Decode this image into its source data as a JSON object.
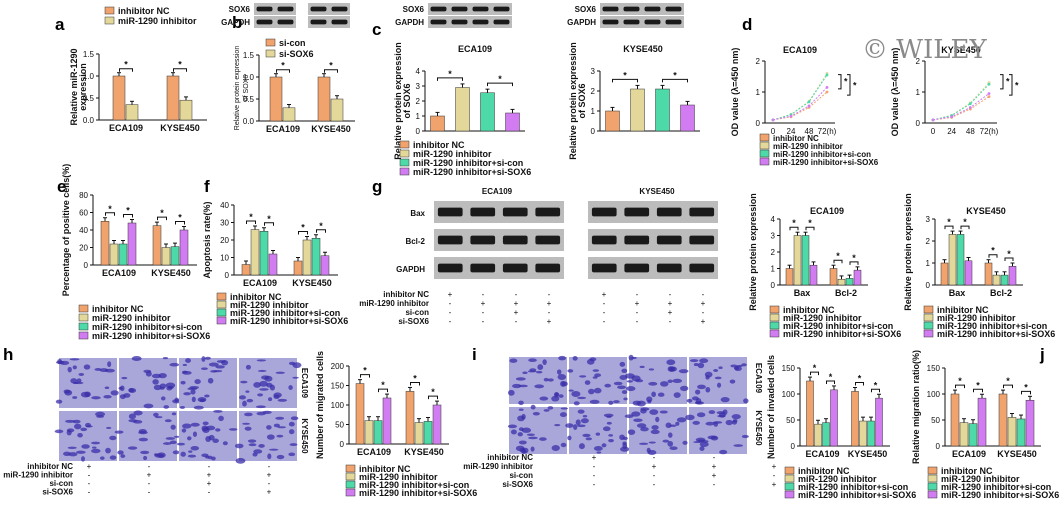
{
  "watermark": "© WILEY",
  "colors": {
    "nc": "#f0a36c",
    "miR": "#e3d79a",
    "sicon": "#4ed9a8",
    "siSOX6": "#d27cf2",
    "wbBand": "#1a1a1a",
    "wbBg": "#bcbcbc",
    "micro": "#a9a7da",
    "cell": "#3a2ea8"
  },
  "legend": {
    "group_labels": [
      "inhibitor NC",
      "miR-1290 inhibitor",
      "miR-1290 inhibitor+si-con",
      "miR-1290 inhibitor+si-SOX6"
    ],
    "group_labels_e": [
      "inhibitor NC",
      "miR-1290 inhibitor",
      "miR-1290 inhibitor+si-con",
      "miR-1290 inhibitor+si-SOX6"
    ],
    "sicon_labels": [
      "si-con",
      "si-SOX6"
    ]
  },
  "treatment_rows": {
    "labels": [
      "inhibitor NC",
      "miR-1290 inhibitor",
      "si-con",
      "si-SOX6"
    ],
    "signs": [
      [
        "+",
        "-",
        "-",
        "-"
      ],
      [
        "-",
        "+",
        "+",
        "+"
      ],
      [
        "-",
        "-",
        "+",
        "-"
      ],
      [
        "-",
        "-",
        "-",
        "+"
      ]
    ]
  },
  "panels": {
    "a": {
      "letter": "a",
      "ylabel": "Relative miR-1290 expression"
    },
    "b": {
      "letter": "b",
      "ylabel": "Relative protein expression of SOX6",
      "wb": [
        "SOX6",
        "GAPDH"
      ]
    },
    "c": {
      "letter": "c",
      "ylabel": "Relative protein expression of SOX6",
      "titles": [
        "ECA109",
        "KYSE450"
      ],
      "wb": [
        "SOX6",
        "GAPDH"
      ]
    },
    "d": {
      "letter": "d",
      "ylabel": "OD value (λ=450 nm)",
      "titles": [
        "ECA109",
        "KYSE450"
      ],
      "xticks": [
        "0",
        "24",
        "48",
        "72(h)"
      ]
    },
    "e": {
      "letter": "e",
      "ylabel": "Percentage of positive cells(%)"
    },
    "f": {
      "letter": "f",
      "ylabel": "Apoptosis rate(%)"
    },
    "g": {
      "letter": "g",
      "cells": [
        "ECA109",
        "KYSE450"
      ],
      "rows": [
        "Bax",
        "Bcl-2",
        "GAPDH"
      ],
      "ylabel": "Relative protein expression",
      "titles": [
        "ECA109",
        "KYSE450"
      ],
      "cats": [
        "Bax",
        "Bcl-2"
      ]
    },
    "h": {
      "letter": "h",
      "ylabel": "Number of migrated cells",
      "rowlabels": [
        "ECA109",
        "KYSE450"
      ]
    },
    "i": {
      "letter": "i",
      "ylabel": "Number of invaded cells",
      "rowlabels": [
        "ECA109",
        "KYSE450"
      ]
    },
    "j": {
      "letter": "j",
      "ylabel": "Relative migration ratio(%)"
    }
  },
  "chart_data": [
    {
      "panel": "a",
      "type": "bar",
      "categories": [
        "ECA109",
        "KYSE450"
      ],
      "series": [
        {
          "name": "inhibitor NC",
          "values": [
            1.0,
            1.0
          ]
        },
        {
          "name": "miR-1290 inhibitor",
          "values": [
            0.35,
            0.45
          ]
        }
      ],
      "ylim": [
        0,
        1.5
      ],
      "yticks": [
        "0.0",
        "0.5",
        "1.0",
        "1.5"
      ]
    },
    {
      "panel": "b",
      "type": "bar",
      "categories": [
        "ECA109",
        "KYSE450"
      ],
      "series": [
        {
          "name": "si-con",
          "values": [
            1.0,
            1.0
          ]
        },
        {
          "name": "si-SOX6",
          "values": [
            0.3,
            0.5
          ]
        }
      ],
      "ylim": [
        0,
        1.5
      ],
      "yticks": [
        "0.0",
        "0.5",
        "1.0",
        "1.5"
      ]
    },
    {
      "panel": "c1",
      "type": "bar",
      "categories": [
        "inhibitor NC",
        "miR-1290 inhibitor",
        "miR-1290 inhibitor+si-con",
        "miR-1290 inhibitor+si-SOX6"
      ],
      "values": [
        1.0,
        2.9,
        2.55,
        1.2
      ],
      "ylim": [
        0,
        4
      ],
      "yticks": [
        "0",
        "1",
        "2",
        "3",
        "4"
      ]
    },
    {
      "panel": "c2",
      "type": "bar",
      "categories": [
        "inhibitor NC",
        "miR-1290 inhibitor",
        "miR-1290 inhibitor+si-con",
        "miR-1290 inhibitor+si-SOX6"
      ],
      "values": [
        1.0,
        2.1,
        2.1,
        1.3
      ],
      "ylim": [
        0,
        3
      ],
      "yticks": [
        "0",
        "1",
        "2",
        "3"
      ]
    },
    {
      "panel": "d1",
      "type": "line",
      "x": [
        0,
        24,
        48,
        72
      ],
      "series": [
        {
          "name": "inhibitor NC",
          "values": [
            0.1,
            0.2,
            0.5,
            1.0
          ]
        },
        {
          "name": "miR-1290 inhibitor",
          "values": [
            0.1,
            0.28,
            0.7,
            1.6
          ]
        },
        {
          "name": "miR-1290 inhibitor+si-con",
          "values": [
            0.1,
            0.27,
            0.68,
            1.55
          ]
        },
        {
          "name": "miR-1290 inhibitor+si-SOX6",
          "values": [
            0.1,
            0.22,
            0.55,
            1.15
          ]
        }
      ],
      "ylim": [
        0,
        2
      ],
      "yticks": [
        "0",
        "1",
        "2"
      ]
    },
    {
      "panel": "d2",
      "type": "line",
      "x": [
        0,
        24,
        48,
        72
      ],
      "series": [
        {
          "name": "inhibitor NC",
          "values": [
            0.1,
            0.18,
            0.45,
            0.85
          ]
        },
        {
          "name": "miR-1290 inhibitor",
          "values": [
            0.1,
            0.25,
            0.65,
            1.3
          ]
        },
        {
          "name": "miR-1290 inhibitor+si-con",
          "values": [
            0.1,
            0.24,
            0.62,
            1.25
          ]
        },
        {
          "name": "miR-1290 inhibitor+si-SOX6",
          "values": [
            0.1,
            0.2,
            0.5,
            0.95
          ]
        }
      ],
      "ylim": [
        0,
        2
      ],
      "yticks": [
        "0",
        "1",
        "2"
      ]
    },
    {
      "panel": "e",
      "type": "bar",
      "categories": [
        "ECA109",
        "KYSE450"
      ],
      "series": [
        {
          "name": "inhibitor NC",
          "values": [
            50,
            45
          ]
        },
        {
          "name": "miR-1290 inhibitor",
          "values": [
            24,
            20
          ]
        },
        {
          "name": "miR-1290 inhibitor+si-con",
          "values": [
            24,
            21
          ]
        },
        {
          "name": "miR-1290 inhibitor+si-SOX6",
          "values": [
            48,
            40
          ]
        }
      ],
      "ylim": [
        0,
        80
      ],
      "yticks": [
        "0",
        "20",
        "40",
        "60",
        "80"
      ]
    },
    {
      "panel": "f",
      "type": "bar",
      "categories": [
        "ECA109",
        "KYSE450"
      ],
      "series": [
        {
          "name": "inhibitor NC",
          "values": [
            6,
            8
          ]
        },
        {
          "name": "miR-1290 inhibitor",
          "values": [
            26,
            20
          ]
        },
        {
          "name": "miR-1290 inhibitor+si-con",
          "values": [
            25,
            21
          ]
        },
        {
          "name": "miR-1290 inhibitor+si-SOX6",
          "values": [
            12,
            11
          ]
        }
      ],
      "ylim": [
        0,
        40
      ],
      "yticks": [
        "0",
        "10",
        "20",
        "30",
        "40"
      ]
    },
    {
      "panel": "g1",
      "type": "bar",
      "categories": [
        "Bax",
        "Bcl-2"
      ],
      "series": [
        {
          "name": "inhibitor NC",
          "values": [
            1.0,
            1.0
          ]
        },
        {
          "name": "miR-1290 inhibitor",
          "values": [
            3.0,
            0.35
          ]
        },
        {
          "name": "miR-1290 inhibitor+si-con",
          "values": [
            3.0,
            0.4
          ]
        },
        {
          "name": "miR-1290 inhibitor+si-SOX6",
          "values": [
            1.2,
            0.9
          ]
        }
      ],
      "ylim": [
        0,
        4
      ],
      "yticks": [
        "0",
        "1",
        "2",
        "3",
        "4"
      ]
    },
    {
      "panel": "g2",
      "type": "bar",
      "categories": [
        "Bax",
        "Bcl-2"
      ],
      "series": [
        {
          "name": "inhibitor NC",
          "values": [
            1.0,
            1.0
          ]
        },
        {
          "name": "miR-1290 inhibitor",
          "values": [
            2.3,
            0.45
          ]
        },
        {
          "name": "miR-1290 inhibitor+si-con",
          "values": [
            2.3,
            0.45
          ]
        },
        {
          "name": "miR-1290 inhibitor+si-SOX6",
          "values": [
            1.1,
            0.85
          ]
        }
      ],
      "ylim": [
        0,
        3
      ],
      "yticks": [
        "0",
        "1",
        "2",
        "3"
      ]
    },
    {
      "panel": "h",
      "type": "bar",
      "categories": [
        "ECA109",
        "KYSE450"
      ],
      "series": [
        {
          "name": "inhibitor NC",
          "values": [
            155,
            135
          ]
        },
        {
          "name": "miR-1290 inhibitor",
          "values": [
            60,
            55
          ]
        },
        {
          "name": "miR-1290 inhibitor+si-con",
          "values": [
            60,
            58
          ]
        },
        {
          "name": "miR-1290 inhibitor+si-SOX6",
          "values": [
            118,
            100
          ]
        }
      ],
      "ylim": [
        0,
        200
      ],
      "yticks": [
        "0",
        "50",
        "100",
        "150",
        "200"
      ]
    },
    {
      "panel": "i",
      "type": "bar",
      "categories": [
        "ECA109",
        "KYSE450"
      ],
      "series": [
        {
          "name": "inhibitor NC",
          "values": [
            125,
            105
          ]
        },
        {
          "name": "miR-1290 inhibitor",
          "values": [
            42,
            48
          ]
        },
        {
          "name": "miR-1290 inhibitor+si-con",
          "values": [
            45,
            48
          ]
        },
        {
          "name": "miR-1290 inhibitor+si-SOX6",
          "values": [
            108,
            92
          ]
        }
      ],
      "ylim": [
        0,
        150
      ],
      "yticks": [
        "0",
        "50",
        "100",
        "150"
      ]
    },
    {
      "panel": "j",
      "type": "bar",
      "categories": [
        "ECA109",
        "KYSE450"
      ],
      "series": [
        {
          "name": "inhibitor NC",
          "values": [
            100,
            100
          ]
        },
        {
          "name": "miR-1290 inhibitor",
          "values": [
            45,
            55
          ]
        },
        {
          "name": "miR-1290 inhibitor+si-con",
          "values": [
            43,
            52
          ]
        },
        {
          "name": "miR-1290 inhibitor+si-SOX6",
          "values": [
            92,
            88
          ]
        }
      ],
      "ylim": [
        0,
        150
      ],
      "yticks": [
        "0",
        "50",
        "100",
        "150"
      ]
    }
  ]
}
